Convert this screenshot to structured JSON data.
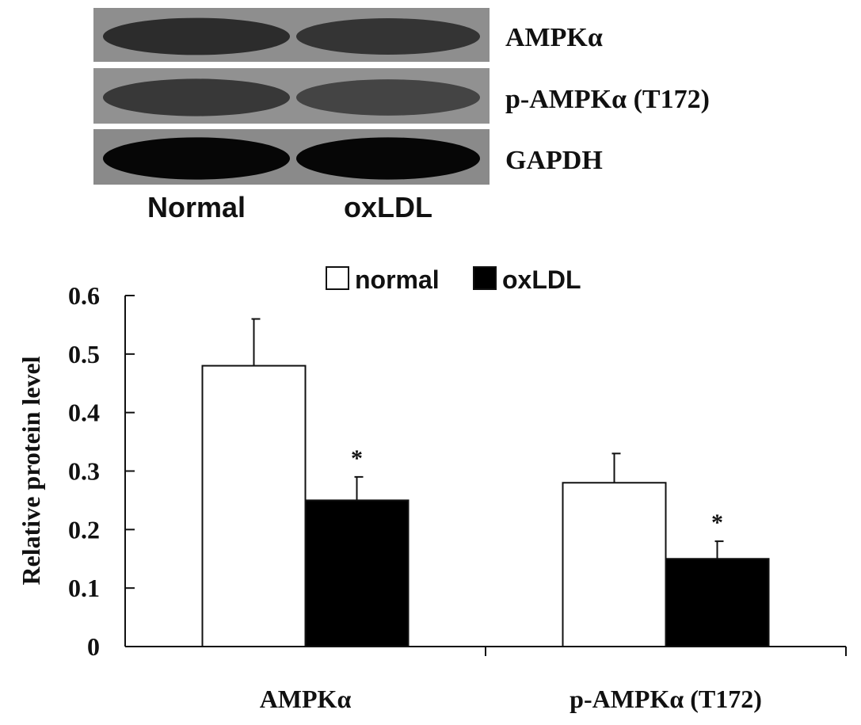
{
  "blot": {
    "rows": [
      {
        "label": "AMPKα",
        "band_intensity": [
          0.78,
          0.74
        ]
      },
      {
        "label": "p-AMPKα (T172)",
        "band_intensity": [
          0.72,
          0.66
        ]
      },
      {
        "label": "GAPDH",
        "band_intensity": [
          0.97,
          0.97
        ]
      }
    ],
    "lanes": [
      "Normal",
      "oxLDL"
    ]
  },
  "chart_data": {
    "type": "bar",
    "ylabel": "Relative protein level",
    "xlabel": "",
    "ylim": [
      0,
      0.6
    ],
    "yticks": [
      0,
      0.1,
      0.2,
      0.3,
      0.4,
      0.5,
      0.6
    ],
    "ytick_labels": [
      "0",
      "0.1",
      "0.2",
      "0.3",
      "0.4",
      "0.5",
      "0.6"
    ],
    "categories": [
      "AMPKα",
      "p-AMPKα (T172)"
    ],
    "series": [
      {
        "name": "normal",
        "color": "#ffffff",
        "values": [
          0.48,
          0.28
        ],
        "errors": [
          0.08,
          0.05
        ],
        "annotations": [
          "",
          ""
        ]
      },
      {
        "name": "oxLDL",
        "color": "#000000",
        "values": [
          0.25,
          0.15
        ],
        "errors": [
          0.04,
          0.03
        ],
        "annotations": [
          "*",
          "*"
        ]
      }
    ],
    "legend_position": "top-center",
    "grid": false
  }
}
